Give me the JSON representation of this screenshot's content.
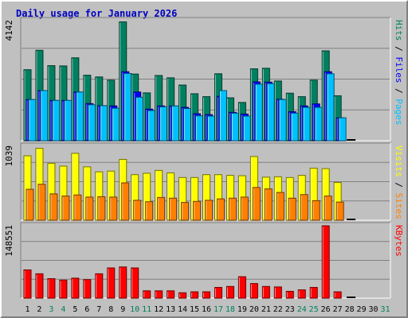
{
  "chart_data": {
    "type": "bar",
    "title": "Daily usage for January 2026",
    "categories": [
      "1",
      "2",
      "3",
      "4",
      "5",
      "6",
      "7",
      "8",
      "9",
      "10",
      "11",
      "12",
      "13",
      "14",
      "15",
      "16",
      "17",
      "18",
      "19",
      "20",
      "21",
      "22",
      "23",
      "24",
      "25",
      "26",
      "27",
      "28",
      "29",
      "30",
      "31"
    ],
    "weekend_days": [
      "3",
      "4",
      "10",
      "11",
      "17",
      "18",
      "24",
      "25",
      "31"
    ],
    "panels": [
      {
        "name": "hits-files-pages",
        "max_label": "4142",
        "ymax": 4142,
        "axis_labels": [
          {
            "text": "Pages",
            "color": "#00c0ff"
          },
          {
            "text": " / ",
            "color": "#000000"
          },
          {
            "text": "Files",
            "color": "#0000ff"
          },
          {
            "text": " / ",
            "color": "#000000"
          },
          {
            "text": "Hits",
            "color": "#008060"
          }
        ],
        "series": [
          {
            "name": "Hits",
            "color": "#008060",
            "values": [
              2450,
              3120,
              2590,
              2580,
              2860,
              2260,
              2200,
              2090,
              4100,
              2300,
              1650,
              2250,
              2170,
              1920,
              1620,
              1520,
              2310,
              1480,
              1320,
              2480,
              2500,
              2060,
              1640,
              1520,
              2090,
              3100,
              1550,
              0,
              0,
              0,
              0
            ]
          },
          {
            "name": "Files",
            "color": "#0000ff",
            "values": [
              1420,
              1730,
              1390,
              1390,
              1680,
              1280,
              1210,
              1200,
              2380,
              1680,
              1090,
              1200,
              1200,
              1150,
              930,
              900,
              1530,
              980,
              920,
              2030,
              2020,
              1430,
              1000,
              1200,
              1270,
              2380,
              790,
              0,
              0,
              0,
              0
            ]
          },
          {
            "name": "Pages",
            "color": "#00c0ff",
            "values": [
              1420,
              1730,
              1390,
              1390,
              1680,
              1240,
              1210,
              1120,
              2320,
              1500,
              1040,
              1170,
              1200,
              1110,
              860,
              850,
              1730,
              950,
              850,
              1950,
              1970,
              1420,
              950,
              1150,
              1150,
              2310,
              790,
              0,
              0,
              0,
              0
            ]
          }
        ]
      },
      {
        "name": "visits-sites",
        "max_label": "1039",
        "ymax": 1039,
        "axis_labels": [
          {
            "text": "Sites",
            "color": "#ff8000"
          },
          {
            "text": " / ",
            "color": "#000000"
          },
          {
            "text": "Visits",
            "color": "#ffff00"
          }
        ],
        "series": [
          {
            "name": "Visits",
            "color": "#ffff00",
            "values": [
              905,
              1010,
              800,
              760,
              940,
              750,
              680,
              690,
              855,
              640,
              660,
              700,
              665,
              600,
              600,
              640,
              640,
              630,
              625,
              895,
              605,
              610,
              600,
              630,
              730,
              725,
              530,
              0,
              0,
              0,
              0
            ]
          },
          {
            "name": "Sites",
            "color": "#ff8000",
            "values": [
              435,
              505,
              370,
              340,
              355,
              325,
              330,
              325,
              525,
              280,
              260,
              320,
              310,
              250,
              265,
              280,
              300,
              310,
              325,
              460,
              440,
              390,
              310,
              360,
              275,
              340,
              255,
              0,
              0,
              0,
              0
            ]
          }
        ]
      },
      {
        "name": "kbytes",
        "max_label": "148551",
        "ymax": 148551,
        "axis_labels": [
          {
            "text": "KBytes",
            "color": "#ff0000"
          }
        ],
        "series": [
          {
            "name": "KBytes",
            "color": "#ff0000",
            "values": [
              58000,
              50000,
              40000,
              37000,
              41000,
              38000,
              50000,
              62000,
              64000,
              62000,
              15000,
              15000,
              15000,
              11000,
              13000,
              13000,
              22000,
              24000,
              44000,
              30000,
              24000,
              23000,
              14000,
              17000,
              22000,
              148551,
              13000,
              0,
              0,
              0,
              0
            ]
          }
        ]
      }
    ],
    "colors": {
      "background": "#c0c0c0",
      "grid": "#808080",
      "title": "#0000c0",
      "weekday_label": "#000000",
      "weekend_label": "#00805c"
    }
  }
}
